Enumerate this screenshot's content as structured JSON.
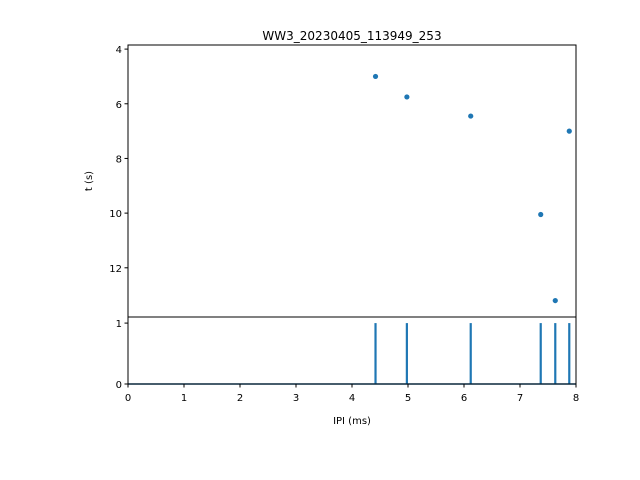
{
  "chart_data": [
    {
      "type": "scatter",
      "title": "WW3_20230405_113949_253",
      "xlabel": "",
      "ylabel": "t (s)",
      "xlim": [
        0,
        8
      ],
      "ylim": [
        13.8,
        3.85
      ],
      "y_inverted": true,
      "yticks": [
        4,
        6,
        8,
        10,
        12
      ],
      "grid": false,
      "color": "#1f77b4",
      "points": [
        {
          "x": 4.42,
          "y": 5.0
        },
        {
          "x": 4.98,
          "y": 5.75
        },
        {
          "x": 6.12,
          "y": 6.45
        },
        {
          "x": 7.88,
          "y": 7.0
        },
        {
          "x": 7.37,
          "y": 10.05
        },
        {
          "x": 7.63,
          "y": 13.2
        }
      ]
    },
    {
      "type": "line",
      "title": "",
      "xlabel": "IPI (ms)",
      "ylabel": "",
      "xlim": [
        0,
        8
      ],
      "ylim": [
        0,
        1.1
      ],
      "xticks": [
        0,
        1,
        2,
        3,
        4,
        5,
        6,
        7,
        8
      ],
      "yticks": [
        0,
        1
      ],
      "grid": false,
      "color": "#1f77b4",
      "spikes": [
        {
          "x": 4.42,
          "y": 1
        },
        {
          "x": 4.98,
          "y": 1
        },
        {
          "x": 6.12,
          "y": 1
        },
        {
          "x": 7.37,
          "y": 1
        },
        {
          "x": 7.63,
          "y": 1
        },
        {
          "x": 7.88,
          "y": 1
        }
      ],
      "baseline": 0
    }
  ]
}
